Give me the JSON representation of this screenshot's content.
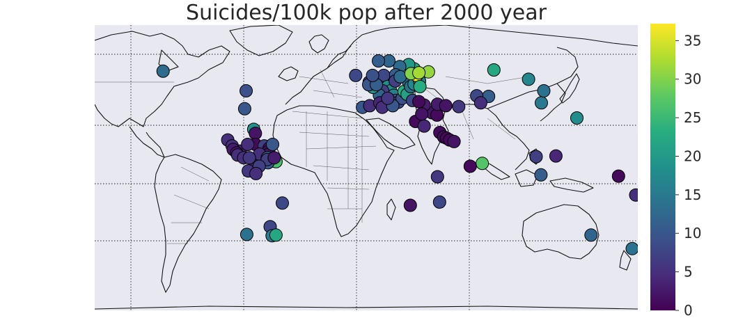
{
  "title": "Suicides/100k pop after 2000 year",
  "colorbar": {
    "min": 0,
    "max": 37.2,
    "ticks": [
      0,
      5,
      10,
      15,
      20,
      25,
      30,
      35
    ],
    "tick_labels": [
      "0",
      "5",
      "10",
      "15",
      "20",
      "25",
      "30",
      "35"
    ],
    "colormap": "viridis"
  },
  "map": {
    "projection": "cylindrical",
    "background": "#e8e8f0",
    "meridians_deg": [
      -150,
      -60,
      30,
      120
    ],
    "parallels_deg": [
      -60,
      -30,
      0,
      30,
      60
    ],
    "extent_lon": [
      -180,
      180
    ],
    "extent_lat": [
      -90,
      90
    ]
  },
  "chart_data": {
    "type": "scatter",
    "description_of_values": "lon, lat, suicides per 100k",
    "points": [
      {
        "lon": -79.6,
        "lat": 48.5,
        "value": 9
      },
      {
        "lon": -80.6,
        "lat": 37.2,
        "value": 10
      },
      {
        "lon": -74.6,
        "lat": 24.2,
        "value": 19
      },
      {
        "lon": -73.5,
        "lat": 21.7,
        "value": 2
      },
      {
        "lon": -73.5,
        "lat": 14.7,
        "value": 1
      },
      {
        "lon": -83.5,
        "lat": 10.5,
        "value": 4
      },
      {
        "lon": -78.6,
        "lat": 14.7,
        "value": 5
      },
      {
        "lon": -73.8,
        "lat": 3.1,
        "value": 4
      },
      {
        "lon": -78.2,
        "lat": -2.0,
        "value": 6
      },
      {
        "lon": -67.6,
        "lat": 13.8,
        "value": 7
      },
      {
        "lon": -64.5,
        "lat": 12.1,
        "value": 2
      },
      {
        "lon": -64.9,
        "lat": 10.3,
        "value": 1
      },
      {
        "lon": -64.9,
        "lat": 8.3,
        "value": 2
      },
      {
        "lon": -70.7,
        "lat": 8.6,
        "value": 5
      },
      {
        "lon": -62.1,
        "lat": 14.7,
        "value": 10
      },
      {
        "lon": -65.6,
        "lat": 6.3,
        "value": 13
      },
      {
        "lon": -62.1,
        "lat": 4.2,
        "value": 27
      },
      {
        "lon": -59.8,
        "lat": 3.8,
        "value": 26
      },
      {
        "lon": -65.2,
        "lat": 3.1,
        "value": 10
      },
      {
        "lon": -65.6,
        "lat": 5.2,
        "value": 7
      },
      {
        "lon": -61.0,
        "lat": 6.3,
        "value": 3
      },
      {
        "lon": -91.8,
        "lat": 17.5,
        "value": 5
      },
      {
        "lon": -88.9,
        "lat": 13.8,
        "value": 5
      },
      {
        "lon": -88.2,
        "lat": 11.5,
        "value": 3
      },
      {
        "lon": -85.9,
        "lat": 9.4,
        "value": 2
      },
      {
        "lon": -85.2,
        "lat": 8.0,
        "value": 5
      },
      {
        "lon": -81.3,
        "lat": 6.3,
        "value": 5
      },
      {
        "lon": -77.5,
        "lat": 6.3,
        "value": 6
      },
      {
        "lon": -71.0,
        "lat": 0.9,
        "value": 7
      },
      {
        "lon": -73.1,
        "lat": -3.7,
        "value": 5
      },
      {
        "lon": -55.6,
        "lat": -22.3,
        "value": 8
      },
      {
        "lon": -63.7,
        "lat": -37.2,
        "value": 8
      },
      {
        "lon": -62.4,
        "lat": -42.9,
        "value": 15
      },
      {
        "lon": -59.8,
        "lat": -42.5,
        "value": 22
      },
      {
        "lon": -79.2,
        "lat": -42.1,
        "value": 14
      },
      {
        "lon": -134.7,
        "lat": 60.9,
        "value": 13
      },
      {
        "lon": 84.6,
        "lat": 61.7,
        "value": 22
      },
      {
        "lon": 81.1,
        "lat": 45.0,
        "value": 11
      },
      {
        "lon": 73.2,
        "lat": 45.4,
        "value": 8
      },
      {
        "lon": 75.9,
        "lat": 40.9,
        "value": 5
      },
      {
        "lon": 116.1,
        "lat": 40.9,
        "value": 15
      },
      {
        "lon": 117.7,
        "lat": 48.5,
        "value": 14
      },
      {
        "lon": 107.6,
        "lat": 55.8,
        "value": 17
      },
      {
        "lon": 139.6,
        "lat": 31.4,
        "value": 18
      },
      {
        "lon": 76.9,
        "lat": 2.7,
        "value": 27
      },
      {
        "lon": 68.9,
        "lat": 0.9,
        "value": 1
      },
      {
        "lon": 112.6,
        "lat": 7.0,
        "value": 7
      },
      {
        "lon": 125.7,
        "lat": 7.4,
        "value": 4
      },
      {
        "lon": 115.8,
        "lat": -4.5,
        "value": 11
      },
      {
        "lon": 167.2,
        "lat": -5.3,
        "value": 1
      },
      {
        "lon": 178.6,
        "lat": -17.2,
        "value": 5
      },
      {
        "lon": 149.0,
        "lat": -42.5,
        "value": 12
      },
      {
        "lon": 176.3,
        "lat": -51.0,
        "value": 14
      },
      {
        "lon": 29.2,
        "lat": -23.7,
        "value": 2
      },
      {
        "lon": 47.2,
        "lat": -5.7,
        "value": 6
      },
      {
        "lon": 48.6,
        "lat": -21.7,
        "value": 8
      },
      {
        "lon": 32.7,
        "lat": 29.2,
        "value": 1
      },
      {
        "lon": 38.4,
        "lat": 26.3,
        "value": 4
      },
      {
        "lon": 43.5,
        "lat": 34.7,
        "value": 2
      },
      {
        "lon": 46.9,
        "lat": 33.2,
        "value": 1
      },
      {
        "lon": 47.2,
        "lat": 40.1,
        "value": 3
      },
      {
        "lon": 52.7,
        "lat": 39.1,
        "value": 2
      },
      {
        "lon": 38.4,
        "lat": 39.5,
        "value": 3
      },
      {
        "lon": 48.8,
        "lat": 22.2,
        "value": 1
      },
      {
        "lon": 51.3,
        "lat": 19.4,
        "value": 1
      },
      {
        "lon": 53.3,
        "lat": 18.6,
        "value": 1
      },
      {
        "lon": 55.3,
        "lat": 17.5,
        "value": 1
      },
      {
        "lon": 58.2,
        "lat": 16.5,
        "value": 2
      },
      {
        "lon": 61.3,
        "lat": 38.6,
        "value": 6
      },
      {
        "lon": -2.5,
        "lat": 38.1,
        "value": 10
      },
      {
        "lon": 2.3,
        "lat": 39.1,
        "value": 5
      },
      {
        "lon": 2.0,
        "lat": 54.0,
        "value": 7
      },
      {
        "lon": 6.7,
        "lat": 54.4,
        "value": 8
      },
      {
        "lon": 9.3,
        "lat": 56.6,
        "value": 10
      },
      {
        "lon": 11.6,
        "lat": 58.2,
        "value": 8
      },
      {
        "lon": 14.2,
        "lat": 51.2,
        "value": 18
      },
      {
        "lon": 16.2,
        "lat": 48.5,
        "value": 18
      },
      {
        "lon": 18.2,
        "lat": 45.7,
        "value": 16
      },
      {
        "lon": 19.5,
        "lat": 42.4,
        "value": 11
      },
      {
        "lon": 21.2,
        "lat": 41.3,
        "value": 8
      },
      {
        "lon": 23.8,
        "lat": 43.8,
        "value": 9
      },
      {
        "lon": 25.1,
        "lat": 48.1,
        "value": 23
      },
      {
        "lon": 27.1,
        "lat": 46.3,
        "value": 21
      },
      {
        "lon": 28.1,
        "lat": 54.0,
        "value": 13
      },
      {
        "lon": 29.4,
        "lat": 51.2,
        "value": 14
      },
      {
        "lon": 31.7,
        "lat": 52.8,
        "value": 17
      },
      {
        "lon": 35.3,
        "lat": 54.7,
        "value": 17
      },
      {
        "lon": 33.4,
        "lat": 58.2,
        "value": 37
      },
      {
        "lon": 31.7,
        "lat": 62.4,
        "value": 22
      },
      {
        "lon": 28.1,
        "lat": 65.0,
        "value": 20
      },
      {
        "lon": 22.2,
        "lat": 63.8,
        "value": 13
      },
      {
        "lon": 15.0,
        "lat": 67.4,
        "value": 12
      },
      {
        "lon": 8.1,
        "lat": 67.4,
        "value": 11
      },
      {
        "lon": 19.5,
        "lat": 58.6,
        "value": 11
      },
      {
        "lon": 19.2,
        "lat": 54.7,
        "value": 7
      },
      {
        "lon": 22.5,
        "lat": 57.4,
        "value": 13
      },
      {
        "lon": 29.7,
        "lat": 59.4,
        "value": 30
      },
      {
        "lon": 35.6,
        "lat": 51.2,
        "value": 23
      },
      {
        "lon": 41.2,
        "lat": 60.5,
        "value": 31
      },
      {
        "lon": 34.9,
        "lat": 59.9,
        "value": 32
      },
      {
        "lon": 30.7,
        "lat": 42.4,
        "value": 8
      },
      {
        "lon": 34.9,
        "lat": 41.7,
        "value": 1
      },
      {
        "lon": 36.8,
        "lat": 33.9,
        "value": 2
      },
      {
        "lon": 10.9,
        "lat": 48.5,
        "value": 7
      },
      {
        "lon": 8.7,
        "lat": 45.7,
        "value": 12
      },
      {
        "lon": 4.5,
        "lat": 50.7,
        "value": 19
      },
      {
        "lon": 1.6,
        "lat": 52.4,
        "value": 10
      },
      {
        "lon": 6.7,
        "lat": 52.4,
        "value": 11
      },
      {
        "lon": 4.2,
        "lat": 58.2,
        "value": 9
      },
      {
        "lon": -7.0,
        "lat": 58.2,
        "value": 8
      },
      {
        "lon": 9.0,
        "lat": 40.9,
        "value": 4
      },
      {
        "lon": 10.6,
        "lat": 38.1,
        "value": 5
      },
      {
        "lon": 17.6,
        "lat": 39.1,
        "value": 10
      },
      {
        "lon": 14.2,
        "lat": 43.8,
        "value": 6
      }
    ]
  }
}
